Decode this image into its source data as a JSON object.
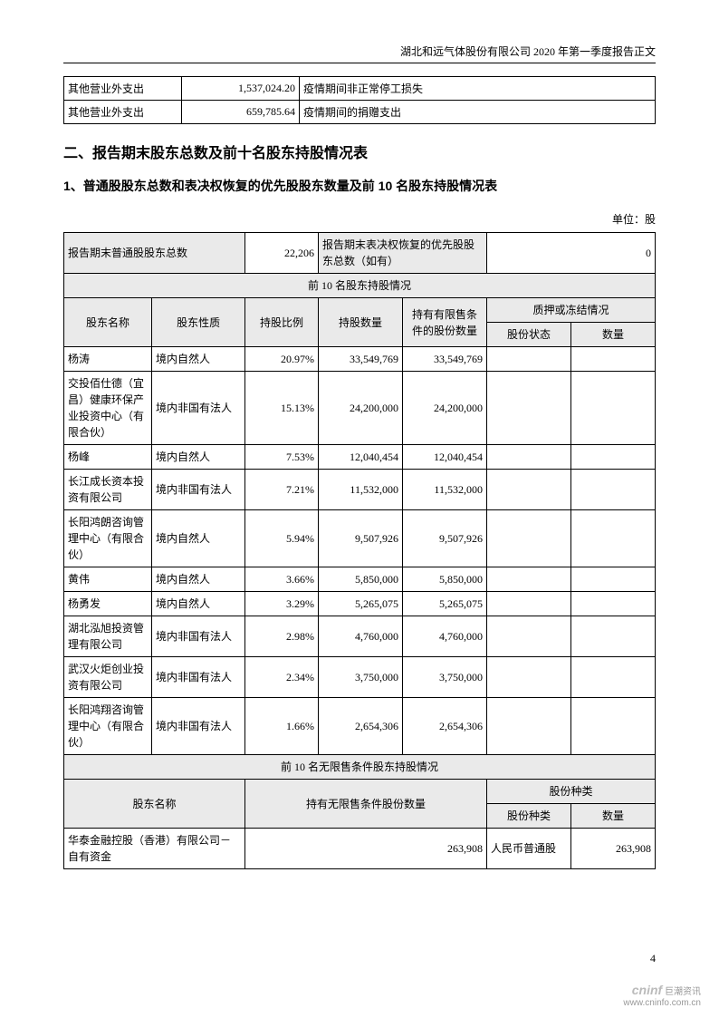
{
  "header": "湖北和远气体股份有限公司 2020 年第一季度报告正文",
  "table1": {
    "rows": [
      {
        "item": "其他营业外支出",
        "amount": "1,537,024.20",
        "note": "疫情期间非正常停工损失"
      },
      {
        "item": "其他营业外支出",
        "amount": "659,785.64",
        "note": "疫情期间的捐赠支出"
      }
    ]
  },
  "h2": "二、报告期末股东总数及前十名股东持股情况表",
  "h3": "1、普通股股东总数和表决权恢复的优先股股东数量及前 10 名股东持股情况表",
  "unit": "单位：股",
  "summary": {
    "left_label": "报告期末普通股股东总数",
    "left_val": "22,206",
    "right_label": "报告期末表决权恢复的优先股股东总数（如有）",
    "right_val": "0"
  },
  "top10_title": "前 10 名股东持股情况",
  "cols": {
    "name": "股东名称",
    "nature": "股东性质",
    "ratio": "持股比例",
    "shares": "持股数量",
    "restricted": "持有有限售条件的股份数量",
    "pledge_title": "质押或冻结情况",
    "status": "股份状态",
    "qty": "数量"
  },
  "holders": [
    {
      "name": "杨涛",
      "nature": "境内自然人",
      "ratio": "20.97%",
      "shares": "33,549,769",
      "restricted": "33,549,769",
      "status": "",
      "qty": ""
    },
    {
      "name": "交投佰仕德（宜昌）健康环保产业投资中心（有限合伙）",
      "nature": "境内非国有法人",
      "ratio": "15.13%",
      "shares": "24,200,000",
      "restricted": "24,200,000",
      "status": "",
      "qty": ""
    },
    {
      "name": "杨峰",
      "nature": "境内自然人",
      "ratio": "7.53%",
      "shares": "12,040,454",
      "restricted": "12,040,454",
      "status": "",
      "qty": ""
    },
    {
      "name": "长江成长资本投资有限公司",
      "nature": "境内非国有法人",
      "ratio": "7.21%",
      "shares": "11,532,000",
      "restricted": "11,532,000",
      "status": "",
      "qty": ""
    },
    {
      "name": "长阳鸿朗咨询管理中心（有限合伙）",
      "nature": "境内自然人",
      "ratio": "5.94%",
      "shares": "9,507,926",
      "restricted": "9,507,926",
      "status": "",
      "qty": ""
    },
    {
      "name": "黄伟",
      "nature": "境内自然人",
      "ratio": "3.66%",
      "shares": "5,850,000",
      "restricted": "5,850,000",
      "status": "",
      "qty": ""
    },
    {
      "name": "杨勇发",
      "nature": "境内自然人",
      "ratio": "3.29%",
      "shares": "5,265,075",
      "restricted": "5,265,075",
      "status": "",
      "qty": ""
    },
    {
      "name": "湖北泓旭投资管理有限公司",
      "nature": "境内非国有法人",
      "ratio": "2.98%",
      "shares": "4,760,000",
      "restricted": "4,760,000",
      "status": "",
      "qty": ""
    },
    {
      "name": "武汉火炬创业投资有限公司",
      "nature": "境内非国有法人",
      "ratio": "2.34%",
      "shares": "3,750,000",
      "restricted": "3,750,000",
      "status": "",
      "qty": ""
    },
    {
      "name": "长阳鸿翔咨询管理中心（有限合伙）",
      "nature": "境内非国有法人",
      "ratio": "1.66%",
      "shares": "2,654,306",
      "restricted": "2,654,306",
      "status": "",
      "qty": ""
    }
  ],
  "unrestricted_title": "前 10 名无限售条件股东持股情况",
  "unrestricted_cols": {
    "name": "股东名称",
    "shares": "持有无限售条件股份数量",
    "type_title": "股份种类",
    "type": "股份种类",
    "qty": "数量"
  },
  "unrestricted_rows": [
    {
      "name": "华泰金融控股（香港）有限公司－自有资金",
      "shares": "263,908",
      "type": "人民币普通股",
      "qty": "263,908"
    }
  ],
  "page": "4",
  "footer": {
    "brand": "cninf",
    "sub": "巨潮资讯",
    "url": "www.cninfo.com.cn"
  }
}
